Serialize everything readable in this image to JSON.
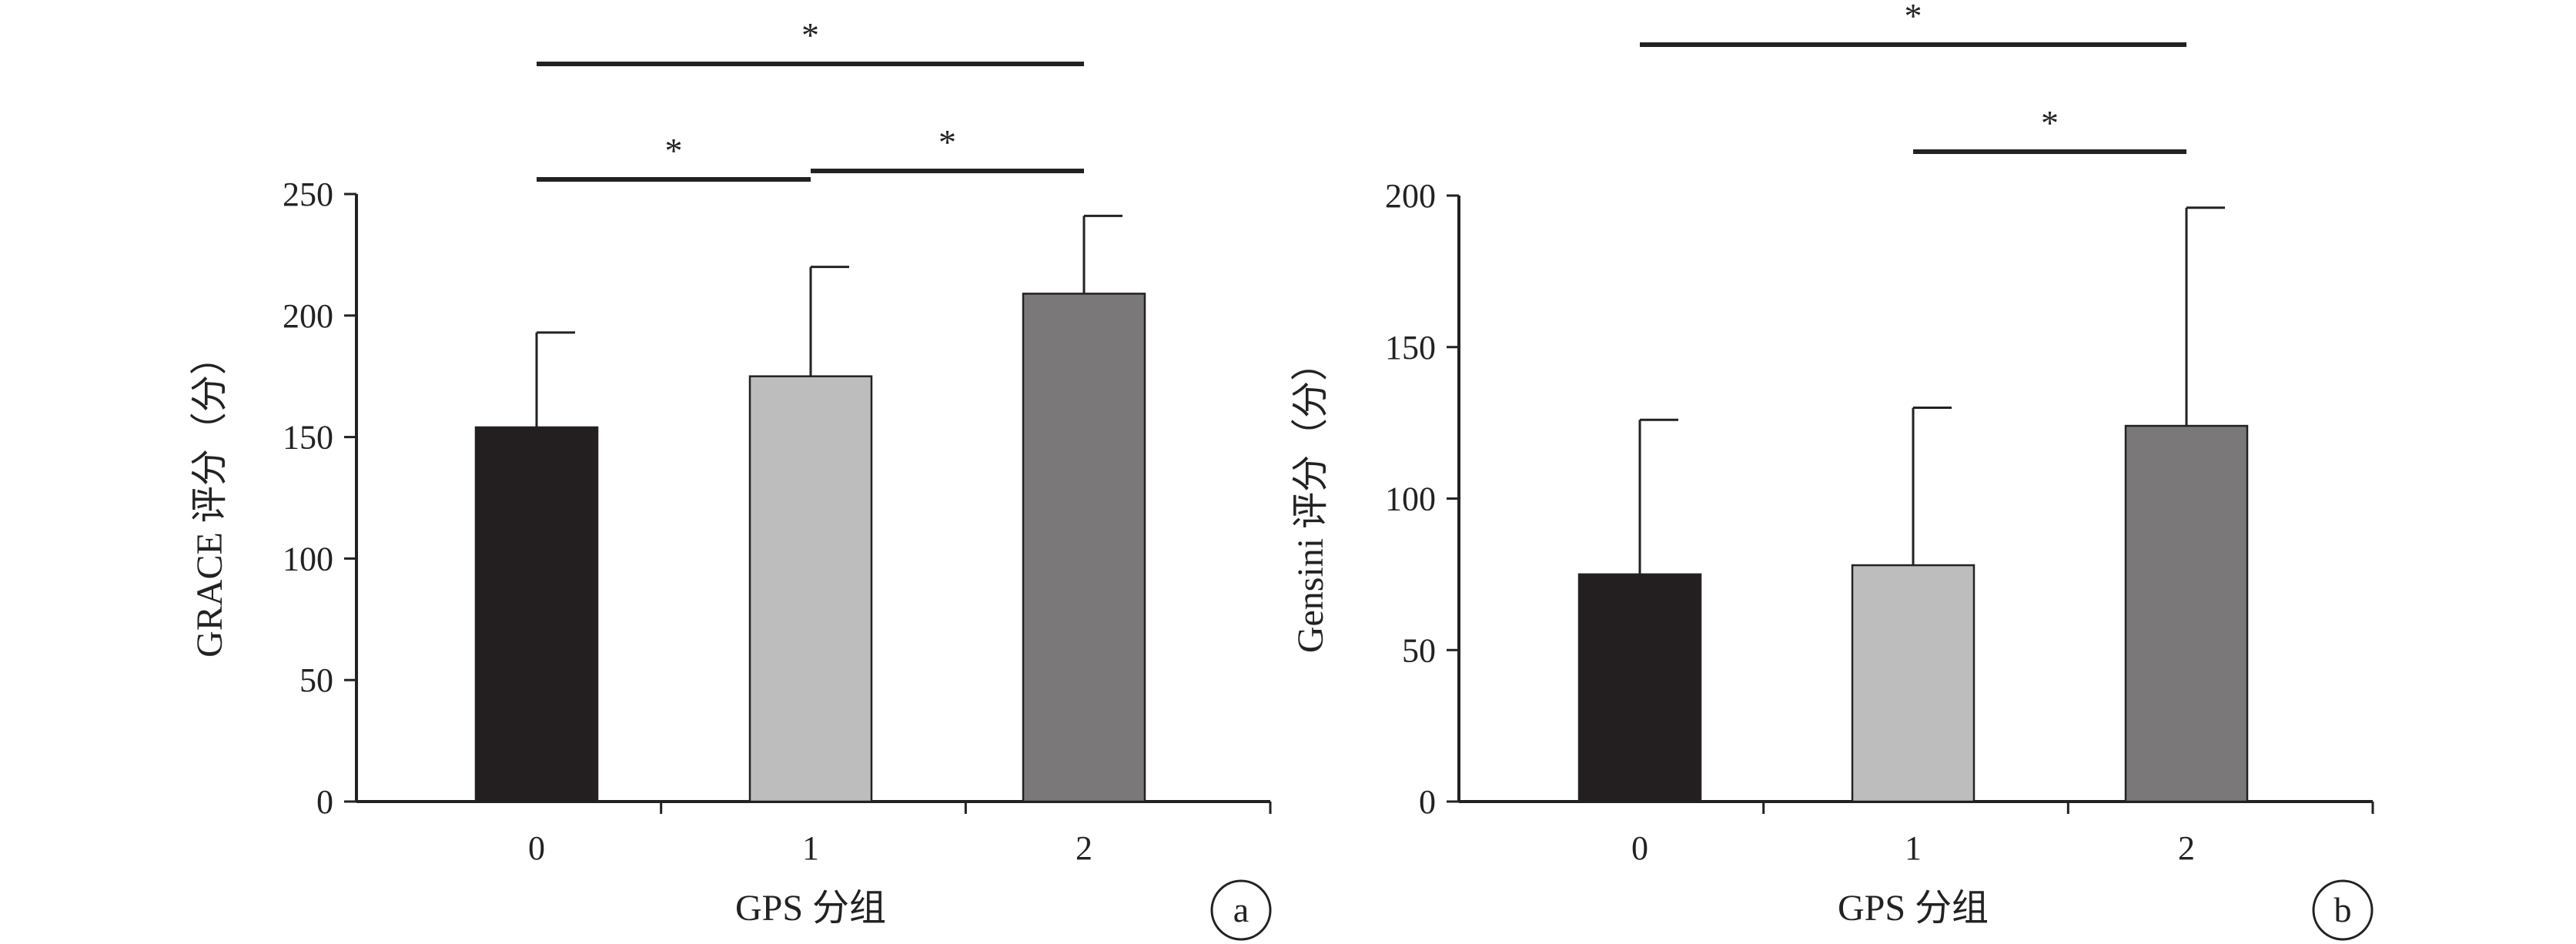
{
  "chart_data": [
    {
      "type": "bar",
      "panel_label": "a",
      "categories": [
        "0",
        "1",
        "2"
      ],
      "values": [
        154,
        175,
        209
      ],
      "error_upper": [
        193,
        220,
        241
      ],
      "colors": [
        "#231f20",
        "#bdbdbd",
        "#7a7878"
      ],
      "xlabel": "GPS 分组",
      "ylabel": "GRACE 评分（分）",
      "ylim": [
        0,
        250
      ],
      "yticks": [
        0,
        50,
        100,
        150,
        200,
        250
      ],
      "grid": false,
      "significance": [
        {
          "from": 0,
          "to": 1,
          "label": "*"
        },
        {
          "from": 1,
          "to": 2,
          "label": "*"
        },
        {
          "from": 0,
          "to": 2,
          "label": "*"
        }
      ]
    },
    {
      "type": "bar",
      "panel_label": "b",
      "categories": [
        "0",
        "1",
        "2"
      ],
      "values": [
        75,
        78,
        124
      ],
      "error_upper": [
        126,
        130,
        196
      ],
      "colors": [
        "#231f20",
        "#bdbdbd",
        "#7a7878"
      ],
      "xlabel": "GPS 分组",
      "ylabel": "Gensini 评分（分）",
      "ylim": [
        0,
        200
      ],
      "yticks": [
        0,
        50,
        100,
        150,
        200
      ],
      "grid": false,
      "significance": [
        {
          "from": 1,
          "to": 2,
          "label": "*"
        },
        {
          "from": 0,
          "to": 2,
          "label": "*"
        }
      ]
    }
  ]
}
